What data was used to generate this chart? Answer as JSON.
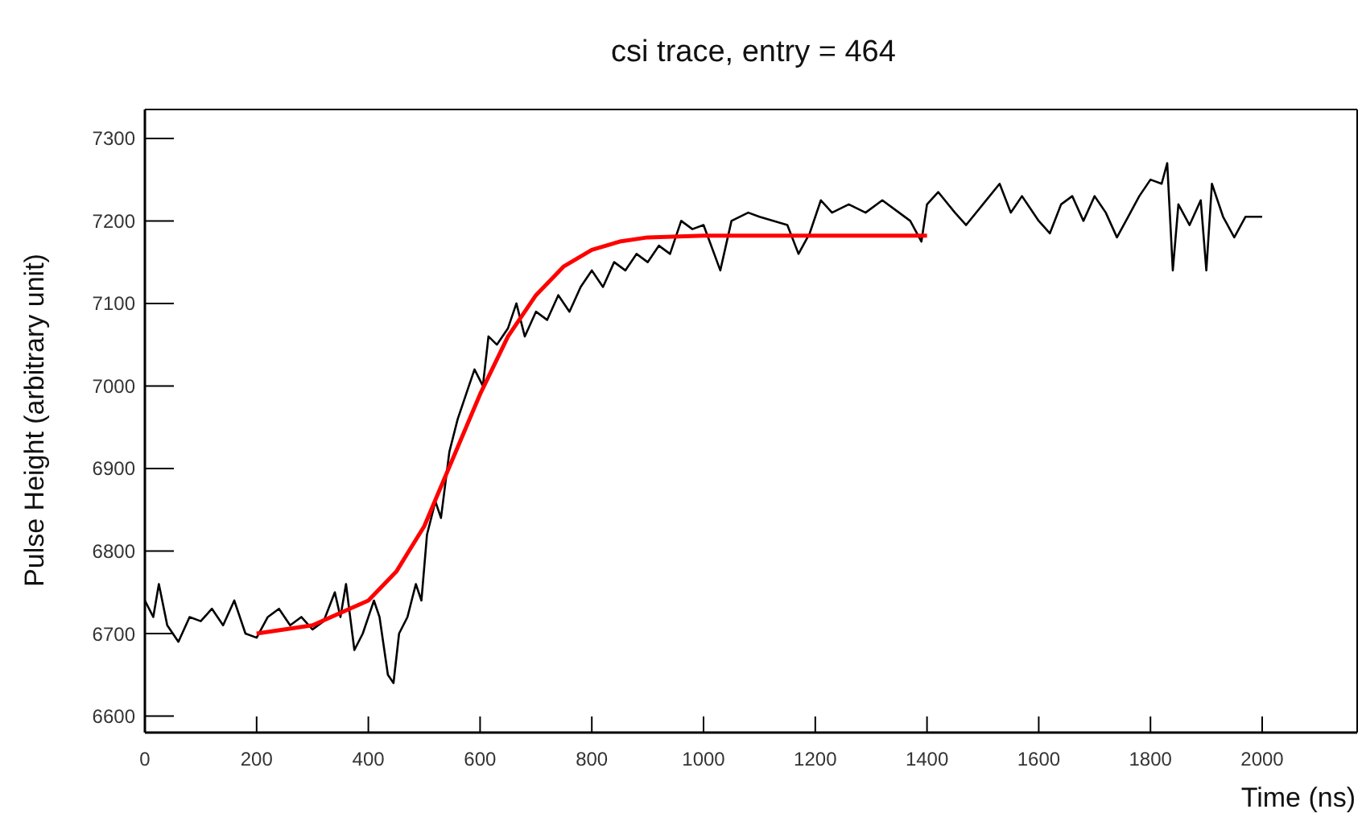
{
  "chart_data": {
    "type": "line",
    "title": "csi trace, entry = 464",
    "xlabel": "Time (ns)",
    "ylabel": "Pulse Height (arbitrary unit)",
    "xlim": [
      0,
      2170
    ],
    "ylim": [
      6580,
      7335
    ],
    "xticks": [
      0,
      200,
      400,
      600,
      800,
      1000,
      1200,
      1400,
      1600,
      1800,
      2000
    ],
    "yticks": [
      6600,
      6700,
      6800,
      6900,
      7000,
      7100,
      7200,
      7300
    ],
    "marker": "none",
    "line_style": "solid",
    "series": [
      {
        "color": "#000000",
        "x": [
          0,
          15,
          25,
          40,
          60,
          80,
          100,
          120,
          140,
          160,
          180,
          200,
          220,
          240,
          260,
          280,
          300,
          320,
          340,
          350,
          360,
          375,
          390,
          410,
          420,
          435,
          445,
          455,
          470,
          485,
          495,
          505,
          520,
          530,
          545,
          560,
          575,
          590,
          605,
          615,
          630,
          650,
          665,
          680,
          700,
          720,
          740,
          760,
          780,
          800,
          820,
          840,
          860,
          880,
          900,
          920,
          940,
          960,
          980,
          1000,
          1030,
          1050,
          1080,
          1100,
          1150,
          1170,
          1190,
          1210,
          1230,
          1260,
          1290,
          1320,
          1350,
          1370,
          1390,
          1400,
          1420,
          1450,
          1470,
          1500,
          1530,
          1550,
          1570,
          1600,
          1620,
          1640,
          1660,
          1680,
          1700,
          1720,
          1740,
          1760,
          1780,
          1800,
          1820,
          1830,
          1840,
          1850,
          1870,
          1890,
          1900,
          1910,
          1930,
          1950,
          1970,
          2000
        ],
        "values": [
          6740,
          6720,
          6760,
          6710,
          6690,
          6720,
          6715,
          6730,
          6710,
          6740,
          6700,
          6695,
          6720,
          6730,
          6710,
          6720,
          6705,
          6715,
          6750,
          6720,
          6760,
          6680,
          6700,
          6740,
          6720,
          6650,
          6640,
          6700,
          6720,
          6760,
          6740,
          6820,
          6860,
          6840,
          6920,
          6960,
          6990,
          7020,
          7000,
          7060,
          7050,
          7070,
          7100,
          7060,
          7090,
          7080,
          7110,
          7090,
          7120,
          7140,
          7120,
          7150,
          7140,
          7160,
          7150,
          7170,
          7160,
          7200,
          7190,
          7195,
          7140,
          7200,
          7210,
          7205,
          7195,
          7160,
          7185,
          7225,
          7210,
          7220,
          7210,
          7225,
          7210,
          7200,
          7175,
          7220,
          7235,
          7210,
          7195,
          7220,
          7245,
          7210,
          7230,
          7200,
          7185,
          7220,
          7230,
          7200,
          7230,
          7210,
          7180,
          7205,
          7230,
          7250,
          7245,
          7270,
          7140,
          7220,
          7195,
          7225,
          7140,
          7245,
          7205,
          7180,
          7205,
          7205
        ]
      },
      {
        "color": "#ff0000",
        "x": [
          200,
          300,
          400,
          450,
          500,
          550,
          600,
          650,
          700,
          750,
          800,
          850,
          900,
          1000,
          1200,
          1400
        ],
        "values": [
          6700,
          6710,
          6740,
          6775,
          6830,
          6910,
          6990,
          7060,
          7110,
          7145,
          7165,
          7175,
          7180,
          7182,
          7182,
          7182
        ]
      }
    ]
  }
}
